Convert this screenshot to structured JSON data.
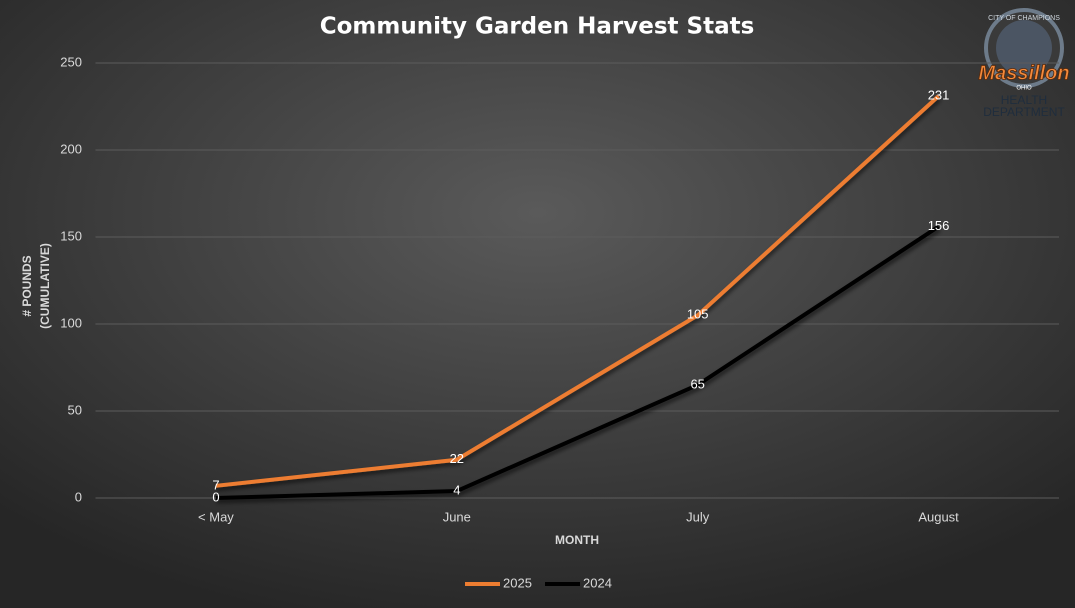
{
  "chart_data": {
    "type": "line",
    "title": "Community Garden Harvest Stats",
    "x_label": "MONTH",
    "y_label": [
      "# POUNDS",
      "(CUMULATIVE)"
    ],
    "categories": [
      "< May",
      "June",
      "July",
      "August"
    ],
    "series": [
      {
        "name": "2025",
        "color": "#ed7d31",
        "values": [
          7,
          22,
          105,
          231
        ]
      },
      {
        "name": "2024",
        "color": "#000000",
        "values": [
          0,
          4,
          65,
          156
        ]
      }
    ],
    "ylim": [
      0,
      250
    ],
    "yticks": [
      0,
      50,
      100,
      150,
      200,
      250
    ],
    "grid": true,
    "legend": "bottom",
    "data_labels": true
  },
  "logo": {
    "top": "CITY OF CHAMPIONS",
    "name": "Massillon",
    "state": "OHIO",
    "line1": "HEALTH",
    "line2": "DEPARTMENT"
  }
}
